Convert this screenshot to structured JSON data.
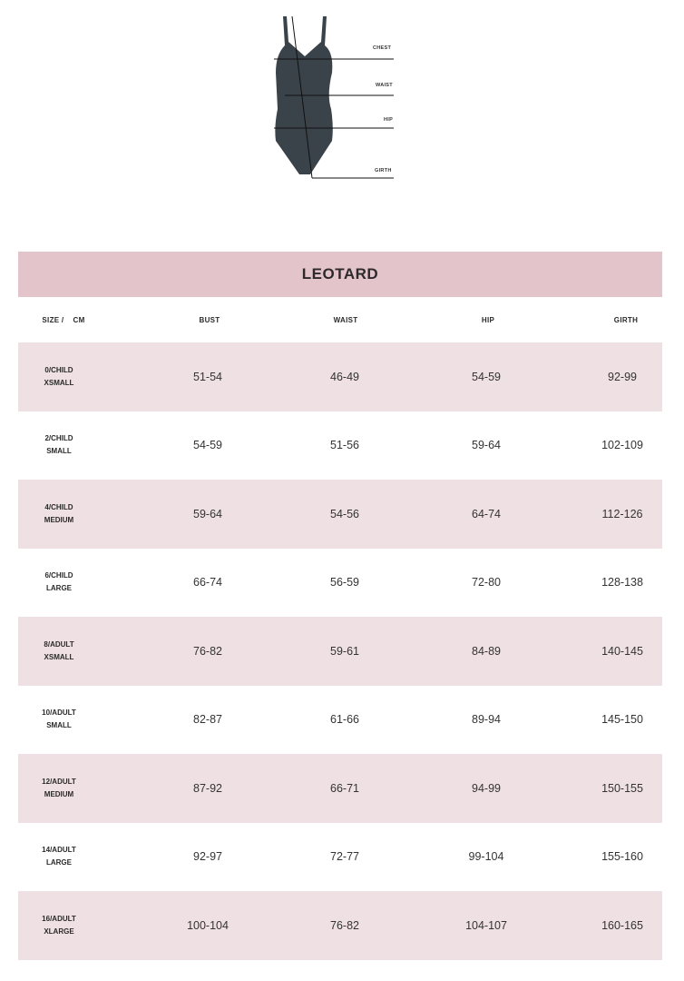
{
  "diagram": {
    "labels": [
      "CHEST",
      "WAIST",
      "HIP",
      "GIRTH"
    ],
    "garment_color": "#3a434a"
  },
  "table": {
    "title": "LEOTARD",
    "headers": [
      "SIZE /    CM",
      "BUST",
      "WAIST",
      "HIP",
      "GIRTH"
    ],
    "rows": [
      {
        "size": [
          "0/CHILD",
          "XSMALL"
        ],
        "bust": "51-54",
        "waist": "46-49",
        "hip": "54-59",
        "girth": "92-99"
      },
      {
        "size": [
          "2/CHILD",
          "SMALL"
        ],
        "bust": "54-59",
        "waist": "51-56",
        "hip": "59-64",
        "girth": "102-109"
      },
      {
        "size": [
          "4/CHILD",
          "MEDIUM"
        ],
        "bust": "59-64",
        "waist": "54-56",
        "hip": "64-74",
        "girth": "112-126"
      },
      {
        "size": [
          "6/CHILD",
          "LARGE"
        ],
        "bust": "66-74",
        "waist": "56-59",
        "hip": "72-80",
        "girth": "128-138"
      },
      {
        "size": [
          "8/ADULT",
          "XSMALL"
        ],
        "bust": "76-82",
        "waist": "59-61",
        "hip": "84-89",
        "girth": "140-145"
      },
      {
        "size": [
          "10/ADULT",
          "SMALL"
        ],
        "bust": "82-87",
        "waist": "61-66",
        "hip": "89-94",
        "girth": "145-150"
      },
      {
        "size": [
          "12/ADULT",
          "MEDIUM"
        ],
        "bust": "87-92",
        "waist": "66-71",
        "hip": "94-99",
        "girth": "150-155"
      },
      {
        "size": [
          "14/ADULT",
          "LARGE"
        ],
        "bust": "92-97",
        "waist": "72-77",
        "hip": "99-104",
        "girth": "155-160"
      },
      {
        "size": [
          "16/ADULT",
          "XLARGE"
        ],
        "bust": "100-104",
        "waist": "76-82",
        "hip": "104-107",
        "girth": "160-165"
      }
    ],
    "colors": {
      "title_bg": "#e2c4ca",
      "row_shade": "#efe0e4"
    }
  }
}
